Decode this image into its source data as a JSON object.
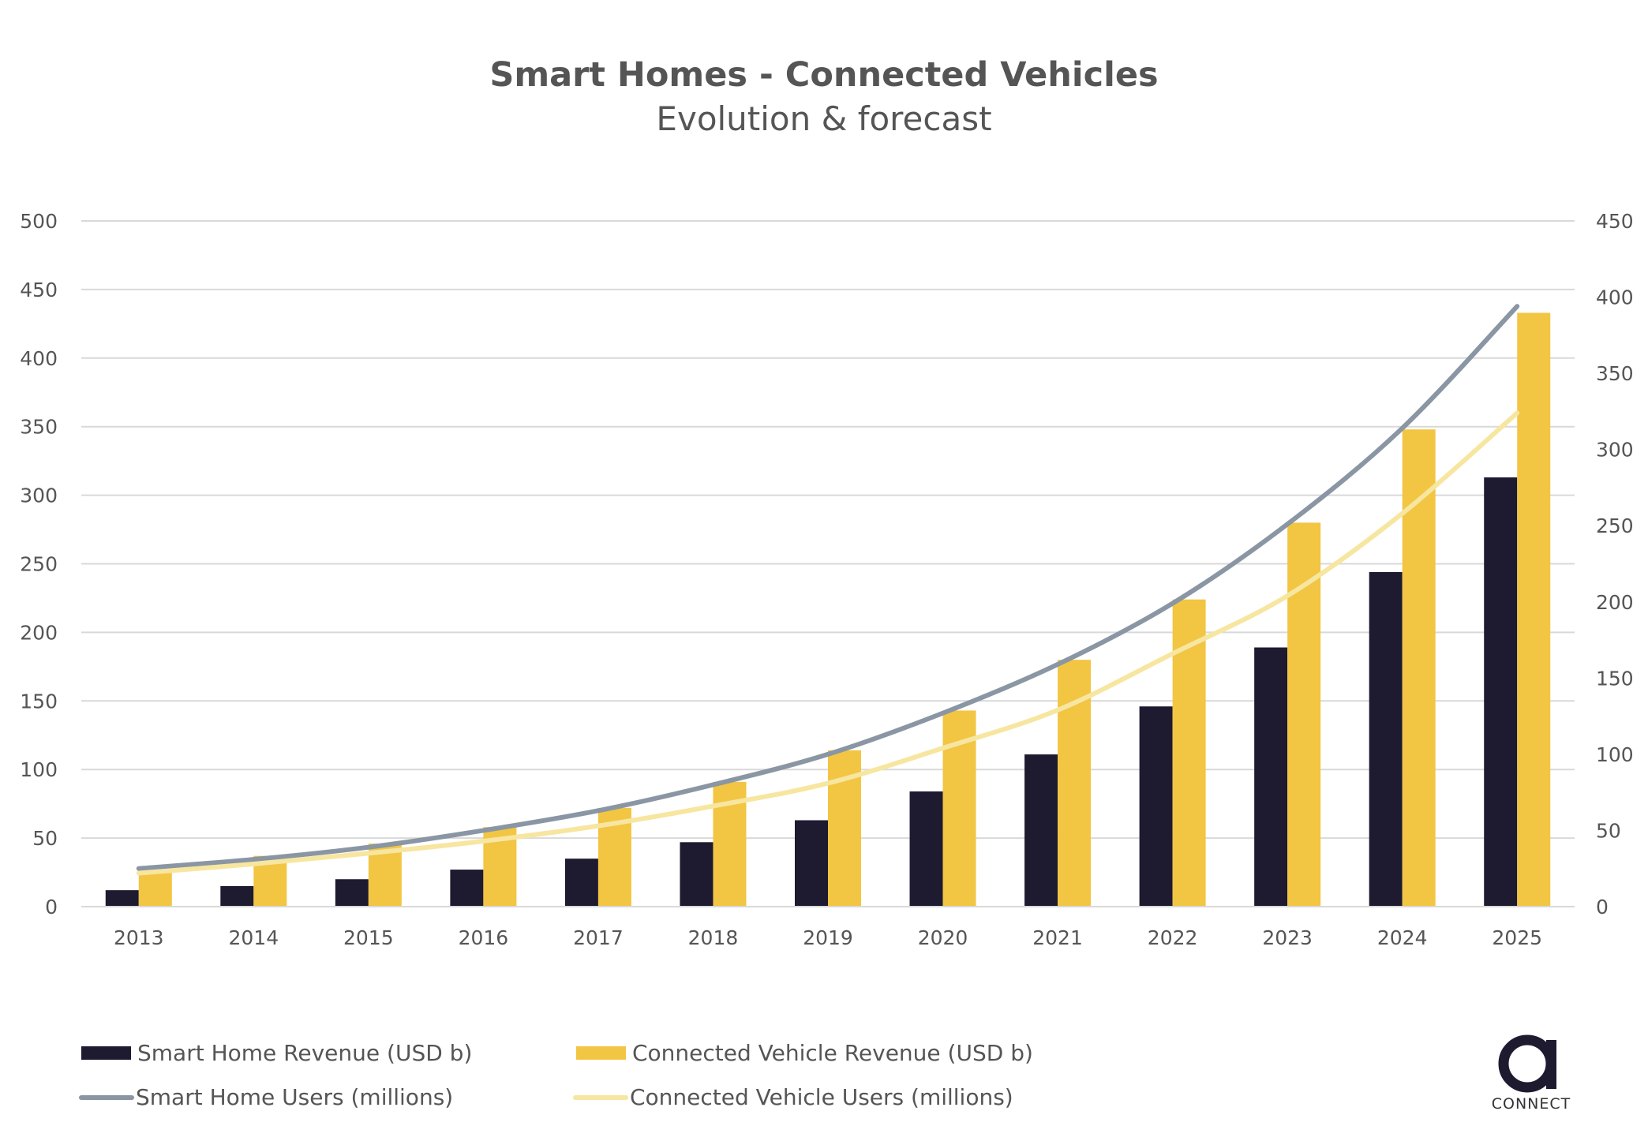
{
  "chart_data": {
    "type": "bar",
    "title": "Smart Homes - Connected Vehicles",
    "subtitle": "Evolution & forecast",
    "categories": [
      "2013",
      "2014",
      "2015",
      "2016",
      "2017",
      "2018",
      "2019",
      "2020",
      "2021",
      "2022",
      "2023",
      "2024",
      "2025"
    ],
    "y_left": {
      "range": [
        0,
        500
      ],
      "ticks": [
        "0",
        "50",
        "100",
        "150",
        "200",
        "250",
        "300",
        "350",
        "400",
        "450",
        "500"
      ]
    },
    "y_right": {
      "range": [
        0,
        450
      ],
      "ticks": [
        "0",
        "50",
        "100",
        "150",
        "200",
        "250",
        "300",
        "350",
        "400",
        "450"
      ]
    },
    "grid": true,
    "legend_position": "bottom",
    "series": [
      {
        "name": "Smart Home Revenue (USD b)",
        "kind": "bar",
        "axis": "left",
        "color": "#1e1a30",
        "values": [
          12,
          15,
          20,
          27,
          35,
          47,
          63,
          84,
          111,
          146,
          189,
          244,
          313
        ]
      },
      {
        "name": "Connected Vehicle Revenue (USD b)",
        "kind": "bar",
        "axis": "left",
        "color": "#f2c543",
        "values": [
          26,
          37,
          46,
          58,
          72,
          91,
          114,
          143,
          180,
          224,
          280,
          348,
          433
        ]
      },
      {
        "name": "Smart Home Users (millions)",
        "kind": "line",
        "axis": "right",
        "color": "#8a96a3",
        "values": [
          25,
          31,
          39,
          50,
          63,
          80,
          100,
          127,
          159,
          199,
          251,
          314,
          394
        ]
      },
      {
        "name": "Connected Vehicle Users (millions)",
        "kind": "line",
        "axis": "right",
        "color": "#f7e6a0",
        "values": [
          22,
          28,
          35,
          43,
          53,
          66,
          81,
          104,
          129,
          166,
          204,
          258,
          324
        ]
      }
    ]
  },
  "logo": {
    "text": "CONNECT",
    "color": "#1e1a30"
  }
}
